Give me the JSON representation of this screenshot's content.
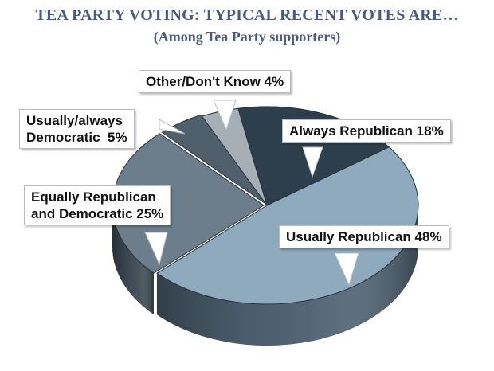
{
  "title": "TEA PARTY VOTING: TYPICAL RECENT VOTES ARE…",
  "subtitle": "(Among Tea Party supporters)",
  "chart_data": {
    "type": "pie",
    "title": "TEA PARTY VOTING: TYPICAL RECENT VOTES ARE…",
    "subtitle": "(Among Tea Party supporters)",
    "categories": [
      "Always Republican",
      "Usually Republican",
      "Equally Republican and Democratic",
      "Usually/always Democratic",
      "Other/Don't Know"
    ],
    "values": [
      18,
      48,
      25,
      5,
      4
    ],
    "labels": [
      "Always Republican 18%",
      "Usually Republican 48%",
      "Equally Republican\nand Democratic 25%",
      "Usually/always\nDemocratic  5%",
      "Other/Don't Know 4%"
    ],
    "colors": [
      "#2d3e4c",
      "#8fa9bd",
      "#6c7e8c",
      "#4f5f6c",
      "#a6afb6"
    ],
    "side_colors": [
      "#1f2c37",
      "#4e6272",
      "#3e4a54",
      "#2f3a43",
      "#6f787f"
    ],
    "legend": "none"
  }
}
